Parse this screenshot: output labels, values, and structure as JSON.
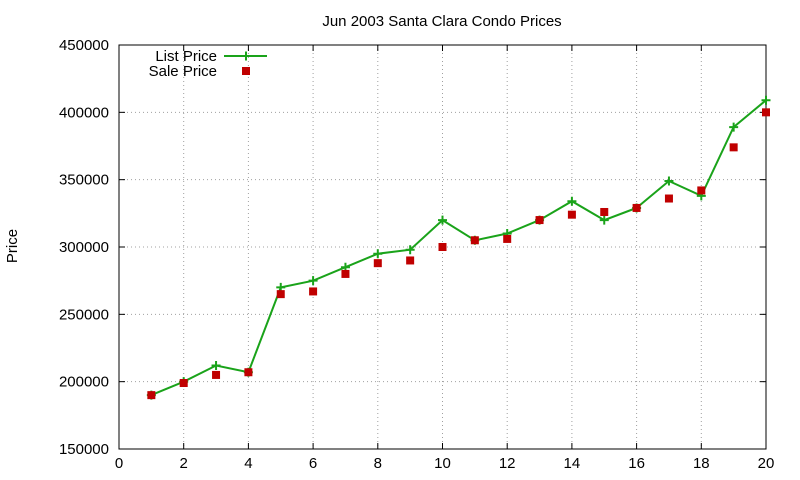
{
  "chart_data": {
    "type": "line",
    "title": "Jun 2003 Santa Clara Condo Prices",
    "xlabel": "",
    "ylabel": "Price",
    "xlim": [
      0,
      20
    ],
    "ylim": [
      150000,
      450000
    ],
    "x_ticks": [
      "0",
      "2",
      "4",
      "6",
      "8",
      "10",
      "12",
      "14",
      "16",
      "18",
      "20"
    ],
    "y_ticks": [
      "150000",
      "200000",
      "250000",
      "300000",
      "350000",
      "400000",
      "450000"
    ],
    "grid": true,
    "legend_position": "top-left",
    "series": [
      {
        "name": "List Price",
        "style": "linespoints",
        "marker": "plus",
        "color": "#1aa31a",
        "x": [
          1,
          2,
          3,
          4,
          5,
          6,
          7,
          8,
          9,
          10,
          11,
          12,
          13,
          14,
          15,
          16,
          17,
          18,
          19,
          20
        ],
        "y": [
          190000,
          200000,
          212000,
          207000,
          270000,
          275000,
          285000,
          295000,
          298000,
          320000,
          305000,
          310000,
          320000,
          334000,
          320000,
          329000,
          349000,
          338000,
          389000,
          409000
        ]
      },
      {
        "name": "Sale Price",
        "style": "points",
        "marker": "square",
        "color": "#c00000",
        "x": [
          1,
          2,
          3,
          4,
          5,
          6,
          7,
          8,
          9,
          10,
          11,
          12,
          13,
          14,
          15,
          16,
          17,
          18,
          19,
          20
        ],
        "y": [
          190000,
          199000,
          205000,
          207000,
          265000,
          267000,
          280000,
          288000,
          290000,
          300000,
          305000,
          306000,
          320000,
          324000,
          326000,
          329000,
          336000,
          342000,
          374000,
          400000
        ]
      }
    ]
  }
}
